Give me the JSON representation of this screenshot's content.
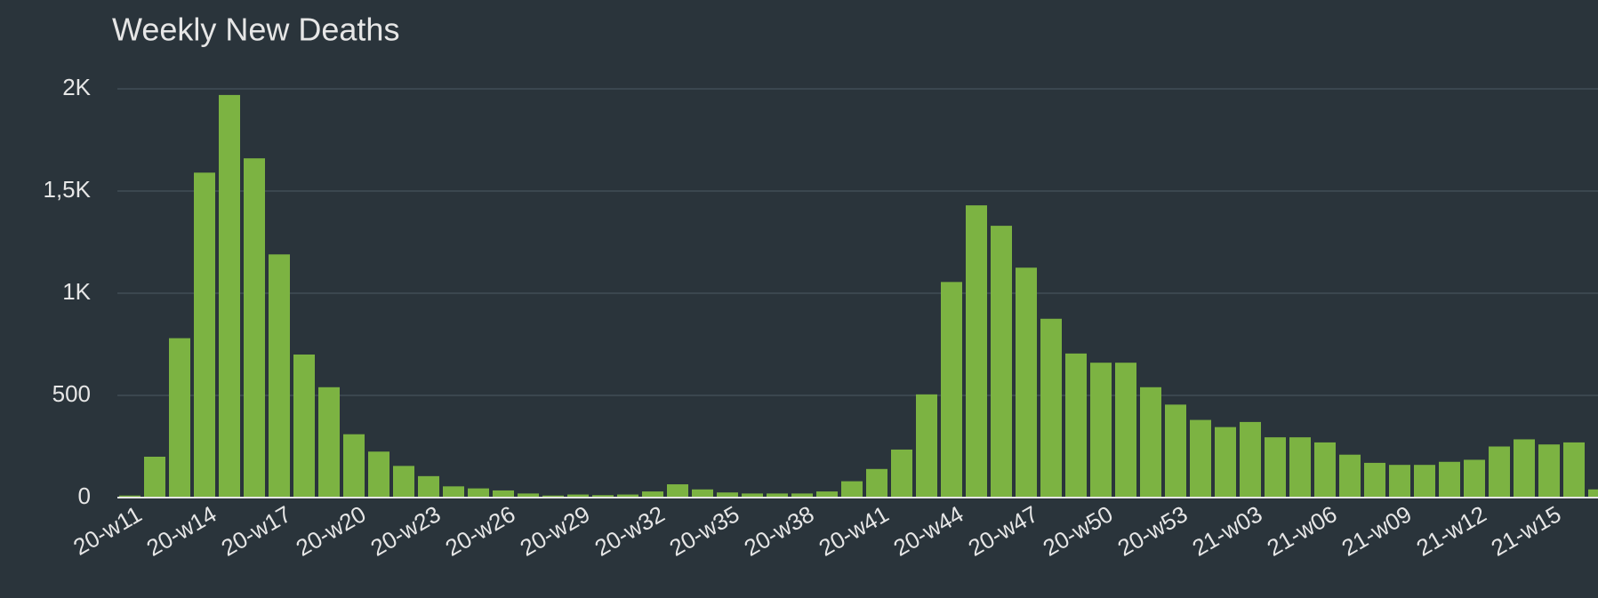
{
  "chart_data": {
    "type": "bar",
    "title": "Weekly New Deaths",
    "categories": [
      "20-w11",
      null,
      null,
      "20-w14",
      null,
      null,
      "20-w17",
      null,
      null,
      "20-w20",
      null,
      null,
      "20-w23",
      null,
      null,
      "20-w26",
      null,
      null,
      "20-w29",
      null,
      null,
      "20-w32",
      null,
      null,
      "20-w35",
      null,
      null,
      "20-w38",
      null,
      null,
      "20-w41",
      null,
      null,
      "20-w44",
      null,
      null,
      "20-w47",
      null,
      null,
      "20-w50",
      null,
      null,
      "20-w53",
      null,
      null,
      "21-w03",
      null,
      null,
      "21-w06",
      null,
      null,
      "21-w09",
      null,
      null,
      "21-w12",
      null,
      null,
      "21-w15",
      null,
      null
    ],
    "values": [
      10,
      200,
      780,
      1590,
      1970,
      1660,
      1190,
      700,
      540,
      310,
      225,
      155,
      105,
      55,
      45,
      35,
      20,
      10,
      15,
      12,
      15,
      30,
      65,
      40,
      25,
      20,
      20,
      20,
      30,
      80,
      140,
      235,
      505,
      1055,
      1430,
      1330,
      1125,
      875,
      705,
      660,
      660,
      540,
      455,
      380,
      345,
      370,
      295,
      295,
      270,
      210,
      170,
      160,
      160,
      175,
      185,
      250,
      285,
      260,
      270,
      40
    ],
    "color": "#7cb342",
    "ylim": [
      0,
      2000
    ],
    "yticks": [
      0,
      500,
      {
        "value": 1000,
        "label": "1K"
      },
      {
        "value": 1500,
        "label": "1,5K"
      },
      {
        "value": 2000,
        "label": "2K"
      }
    ],
    "grid": true
  }
}
